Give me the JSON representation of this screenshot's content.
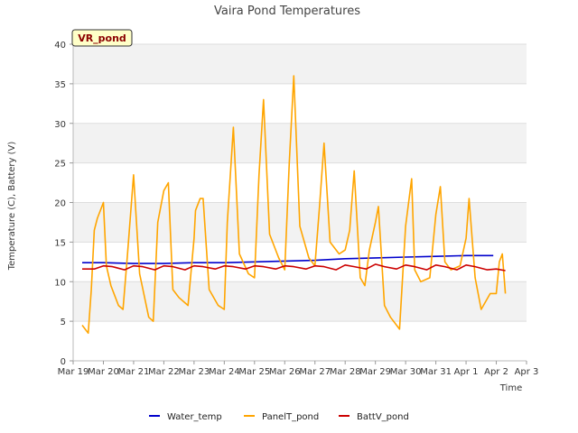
{
  "chart_data": {
    "type": "line",
    "title": "Vaira Pond Temperatures",
    "xlabel": "Time",
    "ylabel": "Temperature (C), Battery (V)",
    "badge": "VR_pond",
    "ylim": [
      0,
      40
    ],
    "yticks": [
      0,
      5,
      10,
      15,
      20,
      25,
      30,
      35,
      40
    ],
    "xlim": [
      0,
      15
    ],
    "xticks": [
      {
        "x": 0,
        "label": "Mar 19"
      },
      {
        "x": 1,
        "label": "Mar 20"
      },
      {
        "x": 2,
        "label": "Mar 21"
      },
      {
        "x": 3,
        "label": "Mar 22"
      },
      {
        "x": 4,
        "label": "Mar 23"
      },
      {
        "x": 5,
        "label": "Mar 24"
      },
      {
        "x": 6,
        "label": "Mar 25"
      },
      {
        "x": 7,
        "label": "Mar 26"
      },
      {
        "x": 8,
        "label": "Mar 27"
      },
      {
        "x": 9,
        "label": "Mar 28"
      },
      {
        "x": 10,
        "label": "Mar 29"
      },
      {
        "x": 11,
        "label": "Mar 30"
      },
      {
        "x": 12,
        "label": "Mar 31"
      },
      {
        "x": 13,
        "label": "Apr 1"
      },
      {
        "x": 14,
        "label": "Apr 2"
      },
      {
        "x": 15,
        "label": "Apr 3"
      }
    ],
    "grid": true,
    "legend_position": "bottom",
    "series": [
      {
        "name": "Water_temp",
        "color": "#0000cc",
        "x": [
          0.3,
          1.0,
          2.0,
          3.0,
          4.0,
          5.0,
          6.0,
          7.0,
          8.0,
          9.0,
          10.0,
          11.0,
          12.0,
          13.0,
          13.9
        ],
        "y": [
          12.4,
          12.4,
          12.3,
          12.3,
          12.4,
          12.4,
          12.5,
          12.6,
          12.7,
          12.9,
          13.0,
          13.1,
          13.2,
          13.3,
          13.3
        ]
      },
      {
        "name": "PanelT_pond",
        "color": "#ffa500",
        "x": [
          0.3,
          0.5,
          0.6,
          0.7,
          0.8,
          1.0,
          1.1,
          1.25,
          1.5,
          1.65,
          1.8,
          2.0,
          2.2,
          2.5,
          2.65,
          2.8,
          3.0,
          3.15,
          3.3,
          3.5,
          3.8,
          4.0,
          4.05,
          4.2,
          4.3,
          4.5,
          4.8,
          5.0,
          5.1,
          5.3,
          5.5,
          5.8,
          6.0,
          6.15,
          6.3,
          6.5,
          6.8,
          7.0,
          7.15,
          7.3,
          7.5,
          7.8,
          8.0,
          8.15,
          8.3,
          8.5,
          8.8,
          9.0,
          9.15,
          9.3,
          9.5,
          9.65,
          9.8,
          10.0,
          10.1,
          10.3,
          10.5,
          10.8,
          11.0,
          11.2,
          11.3,
          11.5,
          11.8,
          12.0,
          12.15,
          12.3,
          12.5,
          12.8,
          13.0,
          13.1,
          13.3,
          13.5,
          13.8,
          14.0,
          14.1,
          14.2,
          14.3
        ],
        "y": [
          4.5,
          3.5,
          9.0,
          16.5,
          18.0,
          20.0,
          12.0,
          9.5,
          7.0,
          6.5,
          13.5,
          23.5,
          11.0,
          5.5,
          5.0,
          17.5,
          21.5,
          22.5,
          9.0,
          8.0,
          7.0,
          15.5,
          19.0,
          20.5,
          20.5,
          9.0,
          7.0,
          6.5,
          17.5,
          29.5,
          13.5,
          11.0,
          10.5,
          23.5,
          33.0,
          16.0,
          13.0,
          11.5,
          25.0,
          36.0,
          17.0,
          13.0,
          12.0,
          19.5,
          27.5,
          15.0,
          13.5,
          14.0,
          16.5,
          24.0,
          10.5,
          9.5,
          14.0,
          17.5,
          19.5,
          7.0,
          5.5,
          4.0,
          17.0,
          23.0,
          11.5,
          10.0,
          10.5,
          18.5,
          22.0,
          12.5,
          11.5,
          12.0,
          15.5,
          20.5,
          10.5,
          6.5,
          8.5,
          8.5,
          12.5,
          13.5,
          8.5
        ]
      },
      {
        "name": "BattV_pond",
        "color": "#cc0000",
        "x": [
          0.3,
          0.7,
          1.0,
          1.3,
          1.7,
          2.0,
          2.3,
          2.7,
          3.0,
          3.3,
          3.7,
          4.0,
          4.3,
          4.7,
          5.0,
          5.3,
          5.7,
          6.0,
          6.3,
          6.7,
          7.0,
          7.3,
          7.7,
          8.0,
          8.3,
          8.7,
          9.0,
          9.3,
          9.7,
          10.0,
          10.3,
          10.7,
          11.0,
          11.3,
          11.7,
          12.0,
          12.3,
          12.7,
          13.0,
          13.3,
          13.7,
          14.0,
          14.3
        ],
        "y": [
          11.6,
          11.6,
          12.0,
          11.9,
          11.5,
          12.0,
          11.9,
          11.5,
          12.0,
          11.9,
          11.5,
          12.0,
          11.9,
          11.6,
          12.0,
          11.9,
          11.6,
          12.0,
          11.9,
          11.6,
          12.0,
          11.9,
          11.6,
          12.0,
          11.9,
          11.5,
          12.1,
          11.9,
          11.6,
          12.2,
          11.9,
          11.6,
          12.1,
          11.9,
          11.5,
          12.1,
          11.9,
          11.5,
          12.1,
          11.9,
          11.5,
          11.6,
          11.4
        ]
      }
    ]
  }
}
